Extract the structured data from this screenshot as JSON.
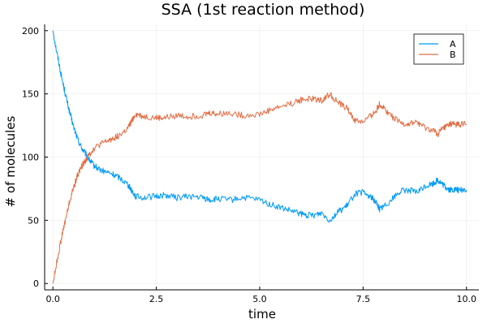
{
  "chart_data": {
    "type": "line",
    "title": "SSA (1st reaction method)",
    "xlabel": "time",
    "ylabel": "# of molecules",
    "xlim": [
      -0.2,
      10.3
    ],
    "ylim": [
      -5,
      205
    ],
    "xticks": [
      0.0,
      2.5,
      5.0,
      7.5,
      10.0
    ],
    "xtick_labels": [
      "0.0",
      "2.5",
      "5.0",
      "7.5",
      "10.0"
    ],
    "yticks": [
      0,
      50,
      100,
      150,
      200
    ],
    "ytick_labels": [
      "0",
      "50",
      "100",
      "150",
      "200"
    ],
    "grid": true,
    "legend_position": "top-right",
    "series": [
      {
        "name": "A",
        "color": "#009af9",
        "x": [
          0.0,
          0.1,
          0.2,
          0.3,
          0.4,
          0.5,
          0.6,
          0.7,
          0.8,
          0.9,
          1.0,
          1.2,
          1.4,
          1.6,
          1.8,
          1.9,
          2.0,
          2.2,
          2.5,
          2.7,
          3.0,
          3.3,
          3.6,
          3.8,
          4.0,
          4.3,
          4.6,
          5.0,
          5.3,
          5.6,
          5.9,
          6.1,
          6.3,
          6.5,
          6.7,
          6.9,
          7.1,
          7.3,
          7.5,
          7.7,
          7.8,
          7.9,
          8.0,
          8.2,
          8.4,
          8.6,
          8.8,
          9.0,
          9.2,
          9.3,
          9.4,
          9.5,
          9.6,
          9.7,
          9.8,
          10.0
        ],
        "y": [
          200,
          182,
          165,
          150,
          136,
          124,
          114,
          107,
          102,
          97,
          93,
          89,
          87,
          84,
          79,
          74,
          69,
          68,
          69,
          70,
          68,
          69,
          68,
          66,
          67,
          66,
          68,
          66,
          62,
          59,
          56,
          54,
          54,
          56,
          50,
          57,
          61,
          71,
          72,
          68,
          65,
          59,
          61,
          67,
          73,
          74,
          72,
          77,
          79,
          82,
          79,
          76,
          74,
          74,
          74,
          74
        ]
      },
      {
        "name": "B",
        "color": "#e26f46",
        "x": [
          0.0,
          0.1,
          0.2,
          0.3,
          0.4,
          0.5,
          0.6,
          0.7,
          0.8,
          0.9,
          1.0,
          1.2,
          1.4,
          1.6,
          1.8,
          1.9,
          2.0,
          2.2,
          2.5,
          2.7,
          3.0,
          3.3,
          3.6,
          3.8,
          4.0,
          4.3,
          4.6,
          5.0,
          5.3,
          5.6,
          5.9,
          6.1,
          6.3,
          6.5,
          6.7,
          6.9,
          7.1,
          7.3,
          7.5,
          7.7,
          7.8,
          7.9,
          8.0,
          8.2,
          8.4,
          8.6,
          8.8,
          9.0,
          9.2,
          9.3,
          9.4,
          9.5,
          9.6,
          9.7,
          9.8,
          10.0
        ],
        "y": [
          0,
          18,
          35,
          50,
          64,
          76,
          86,
          93,
          98,
          103,
          107,
          111,
          114,
          117,
          122,
          128,
          134,
          132,
          131,
          131,
          133,
          132,
          133,
          135,
          134,
          135,
          133,
          134,
          138,
          141,
          144,
          146,
          146,
          145,
          150,
          143,
          139,
          129,
          128,
          133,
          136,
          142,
          139,
          132,
          127,
          126,
          128,
          123,
          121,
          118,
          122,
          124,
          126,
          126,
          126,
          126
        ]
      }
    ]
  }
}
